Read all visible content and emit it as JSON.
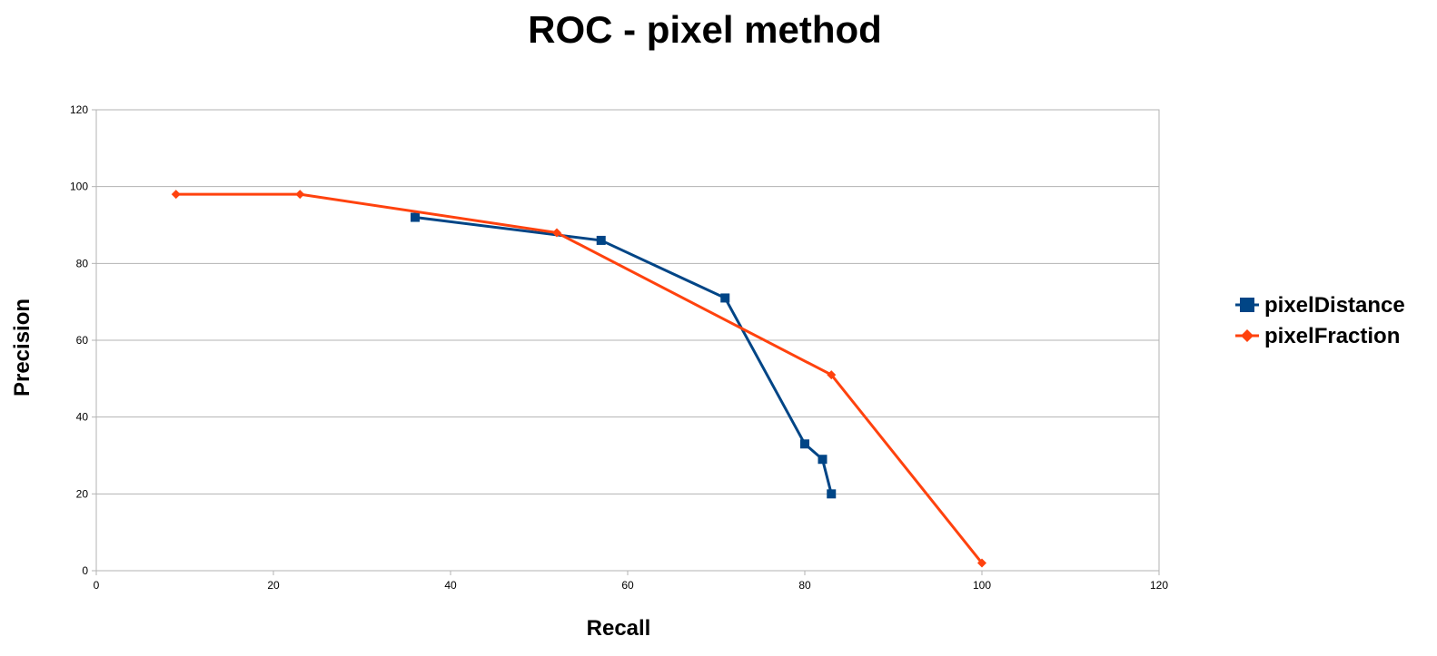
{
  "chart_data": {
    "type": "line",
    "title": "ROC - pixel method",
    "xlabel": "Recall",
    "ylabel": "Precision",
    "xlim": [
      0,
      120
    ],
    "ylim": [
      0,
      120
    ],
    "xticks": [
      "0",
      "20",
      "40",
      "60",
      "80",
      "100",
      "120"
    ],
    "yticks": [
      "0",
      "20",
      "40",
      "60",
      "80",
      "100",
      "120"
    ],
    "grid": "horizontal",
    "legend_position": "right",
    "series": [
      {
        "name": "pixelDistance",
        "color": "#004586",
        "marker": "square",
        "points": [
          {
            "x": 36,
            "y": 92
          },
          {
            "x": 57,
            "y": 86
          },
          {
            "x": 71,
            "y": 71
          },
          {
            "x": 80,
            "y": 33
          },
          {
            "x": 82,
            "y": 29
          },
          {
            "x": 83,
            "y": 20
          }
        ]
      },
      {
        "name": "pixelFraction",
        "color": "#ff420e",
        "marker": "diamond",
        "points": [
          {
            "x": 9,
            "y": 98
          },
          {
            "x": 23,
            "y": 98
          },
          {
            "x": 52,
            "y": 88
          },
          {
            "x": 83,
            "y": 51
          },
          {
            "x": 100,
            "y": 2
          }
        ]
      }
    ]
  }
}
